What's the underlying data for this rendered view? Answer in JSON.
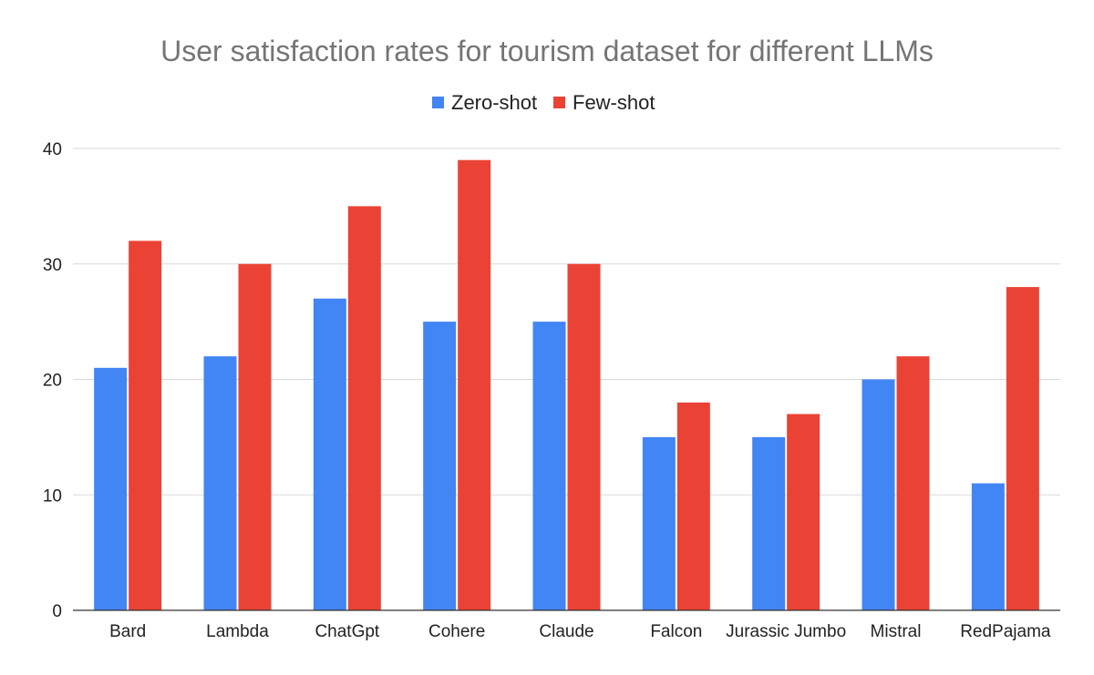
{
  "chart_data": {
    "type": "bar",
    "title": "User satisfaction rates for tourism dataset for different LLMs",
    "xlabel": "",
    "ylabel": "",
    "categories": [
      "Bard",
      "Lambda",
      "ChatGpt",
      "Cohere",
      "Claude",
      "Falcon",
      "Jurassic Jumbo",
      "Mistral",
      "RedPajama"
    ],
    "series": [
      {
        "name": "Zero-shot",
        "color": "#4285F4",
        "values": [
          21,
          22,
          27,
          25,
          25,
          15,
          15,
          20,
          11
        ]
      },
      {
        "name": "Few-shot",
        "color": "#EA4335",
        "values": [
          32,
          30,
          35,
          39,
          30,
          18,
          17,
          22,
          28
        ]
      }
    ],
    "ylim": [
      0,
      40
    ],
    "yticks": [
      0,
      10,
      20,
      30,
      40
    ],
    "grid": true,
    "legend_position": "top-center"
  }
}
